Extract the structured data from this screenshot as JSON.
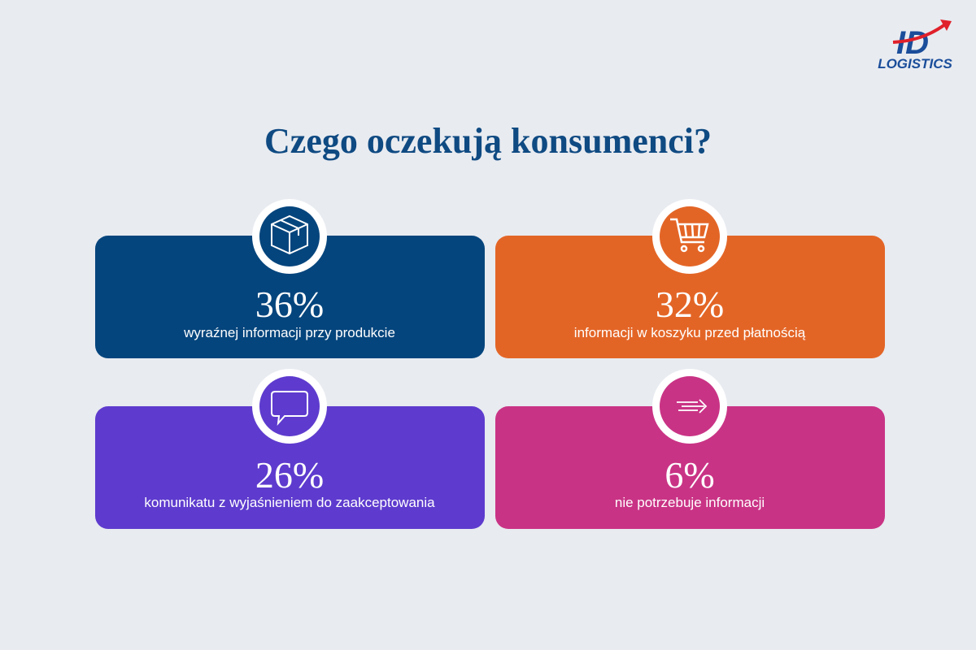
{
  "logo": {
    "mark": "ID",
    "name": "LOGISTICS"
  },
  "title": "Czego oczekują konsumenci?",
  "cards": [
    {
      "value": "36%",
      "label": "wyraźnej informacji przy produkcie"
    },
    {
      "value": "32%",
      "label": "informacji w koszyku przed płatnością"
    },
    {
      "value": "26%",
      "label": "komunikatu z wyjaśnieniem do zaakceptowania"
    },
    {
      "value": "6%",
      "label": "nie potrzebuje informacji"
    }
  ]
}
